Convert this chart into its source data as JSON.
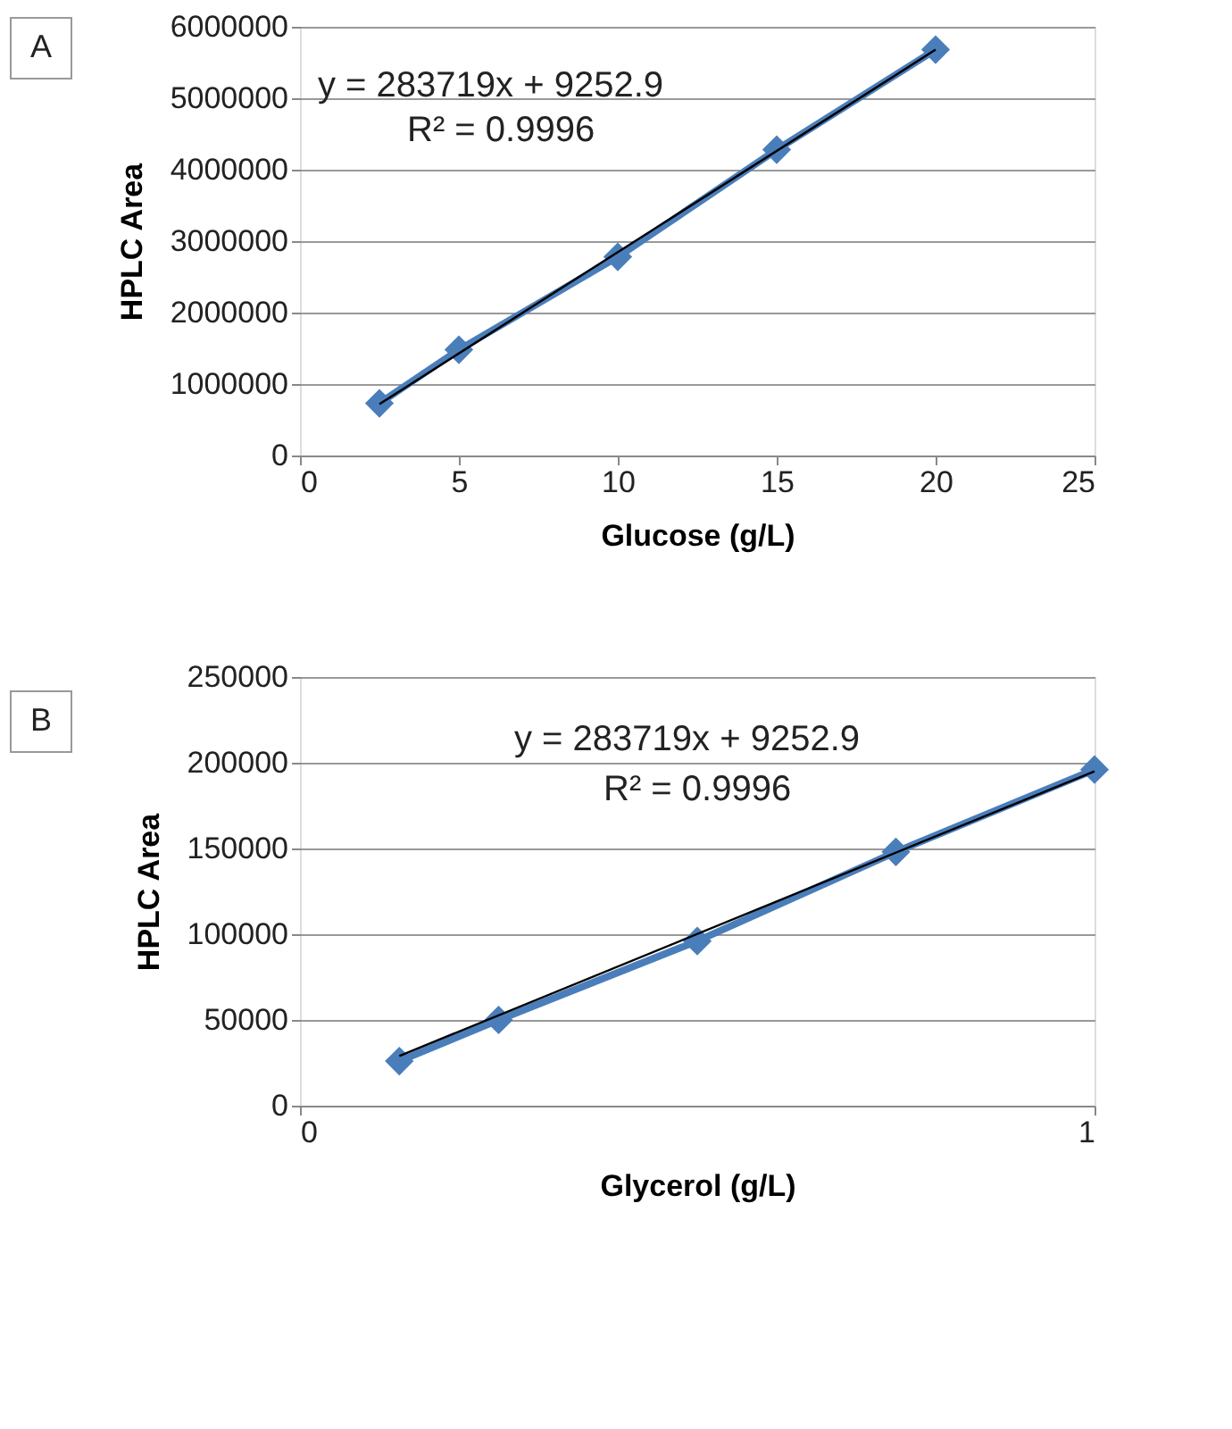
{
  "chart_data": [
    {
      "type": "line",
      "x": [
        2.5,
        5,
        10,
        15,
        20
      ],
      "xlabel": "Glucose (g/L)",
      "ylabel": "HPLC Area",
      "annotations": [
        "A",
        "y = 283719x + 9252.9",
        "R² = 0.9996"
      ],
      "series": [
        {
          "color": "#4a7ebb",
          "values": [
            730000,
            1480000,
            2780000,
            4280000,
            5680000
          ],
          "marker": "diamond"
        },
        {
          "color": "#000000",
          "x": [
            2.5,
            20
          ],
          "values": [
            720000,
            5680000
          ],
          "marker": "none"
        }
      ],
      "xlim": [
        0,
        25
      ],
      "xticks": [
        0,
        5,
        10,
        15,
        20,
        25
      ],
      "ylim": [
        0,
        6000000
      ],
      "yticks": [
        0,
        1000000,
        2000000,
        3000000,
        4000000,
        5000000,
        6000000
      ],
      "grid": "y"
    },
    {
      "type": "line",
      "x": [
        0.125,
        0.25,
        0.5,
        0.75,
        1
      ],
      "xlabel": "Glycerol (g/L)",
      "ylabel": "HPLC Area",
      "annotations": [
        "B",
        "y = 283719x + 9252.9",
        "R² = 0.9996"
      ],
      "series": [
        {
          "color": "#4a7ebb",
          "values": [
            26000,
            50000,
            96000,
            148000,
            196000
          ],
          "marker": "diamond"
        },
        {
          "color": "#000000",
          "x": [
            0.125,
            1
          ],
          "values": [
            29000,
            195000
          ],
          "marker": "none"
        }
      ],
      "xlim": [
        0,
        1
      ],
      "xticks": [
        0,
        1
      ],
      "ylim": [
        0,
        250000
      ],
      "yticks": [
        0,
        50000,
        100000,
        150000,
        200000,
        250000
      ],
      "grid": "y"
    }
  ]
}
